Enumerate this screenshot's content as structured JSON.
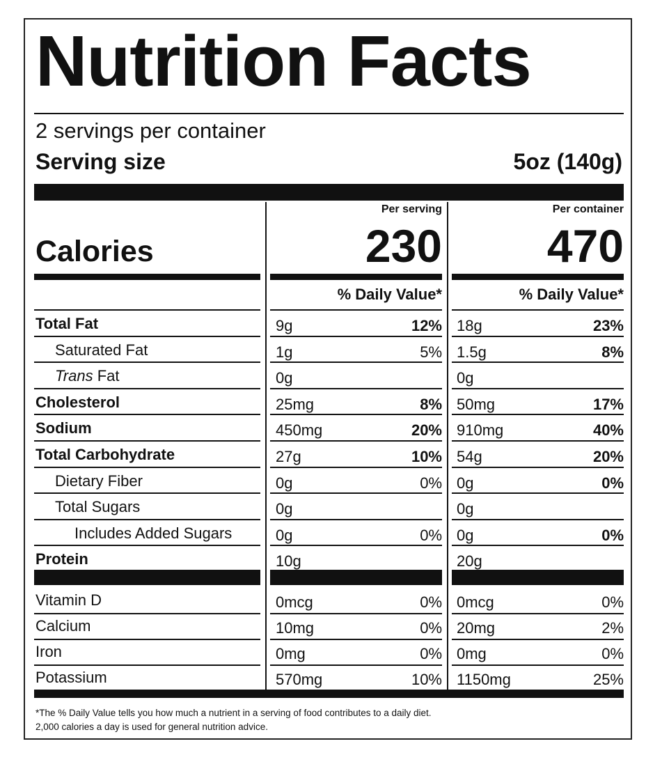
{
  "title": "Nutrition Facts",
  "servings_per_container": "2 servings per container",
  "serving_size_label": "Serving size",
  "serving_size_value": "5oz (140g)",
  "calories_label": "Calories",
  "per_serving": {
    "header": "Per serving",
    "calories": "230",
    "dv_header": "% Daily Value*"
  },
  "per_container": {
    "header": "Per container",
    "calories": "470",
    "dv_header": "% Daily Value*"
  },
  "nutrients": [
    {
      "name": "Total Fat",
      "bold": true,
      "indent": 0,
      "serving_amount": "9g",
      "serving_dv": "12%",
      "container_amount": "18g",
      "container_dv": "23%"
    },
    {
      "name": "Saturated Fat",
      "bold": false,
      "indent": 1,
      "serving_amount": "1g",
      "serving_dv": "5%",
      "container_amount": "1.5g",
      "container_dv": "8%"
    },
    {
      "name": "Trans Fat",
      "bold": false,
      "indent": 1,
      "italic_prefix": "Trans",
      "name_suffix": " Fat",
      "serving_amount": "0g",
      "serving_dv": "",
      "container_amount": "0g",
      "container_dv": ""
    },
    {
      "name": "Cholesterol",
      "bold": true,
      "indent": 0,
      "serving_amount": "25mg",
      "serving_dv": "8%",
      "container_amount": "50mg",
      "container_dv": "17%"
    },
    {
      "name": "Sodium",
      "bold": true,
      "indent": 0,
      "serving_amount": "450mg",
      "serving_dv": "20%",
      "container_amount": "910mg",
      "container_dv": "40%"
    },
    {
      "name": "Total Carbohydrate",
      "bold": true,
      "indent": 0,
      "serving_amount": "27g",
      "serving_dv": "10%",
      "container_amount": "54g",
      "container_dv": "20%"
    },
    {
      "name": "Dietary Fiber",
      "bold": false,
      "indent": 1,
      "serving_amount": "0g",
      "serving_dv": "0%",
      "container_amount": "0g",
      "container_dv": "0%"
    },
    {
      "name": "Total Sugars",
      "bold": false,
      "indent": 1,
      "serving_amount": "0g",
      "serving_dv": "",
      "container_amount": "0g",
      "container_dv": ""
    },
    {
      "name": "Includes Added Sugars",
      "bold": false,
      "indent": 2,
      "serving_amount": "0g",
      "serving_dv": "0%",
      "container_amount": "0g",
      "container_dv": "0%"
    },
    {
      "name": "Protein",
      "bold": true,
      "indent": 0,
      "serving_amount": "10g",
      "serving_dv": "",
      "container_amount": "20g",
      "container_dv": ""
    }
  ],
  "vitamins": [
    {
      "name": "Vitamin D",
      "serving_amount": "0mcg",
      "serving_dv": "0%",
      "container_amount": "0mcg",
      "container_dv": "0%"
    },
    {
      "name": "Calcium",
      "serving_amount": "10mg",
      "serving_dv": "0%",
      "container_amount": "20mg",
      "container_dv": "2%"
    },
    {
      "name": "Iron",
      "serving_amount": "0mg",
      "serving_dv": "0%",
      "container_amount": "0mg",
      "container_dv": "0%"
    },
    {
      "name": "Potassium",
      "serving_amount": "570mg",
      "serving_dv": "10%",
      "container_amount": "1150mg",
      "container_dv": "25%"
    }
  ],
  "footnote_line1": "*The % Daily Value tells you how much a nutrient in a serving of food contributes to a daily diet.",
  "footnote_line2": "2,000 calories a day is used for general nutrition advice."
}
